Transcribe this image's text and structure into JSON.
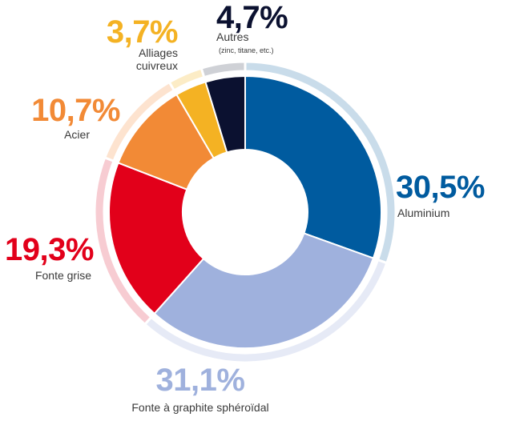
{
  "chart_data": {
    "type": "donut",
    "title": "",
    "slices": [
      {
        "key": "aluminium",
        "label": "Aluminium",
        "pct_label": "30,5%",
        "value": 30.5,
        "color": "#005b9f",
        "ring_color": "#c9dcea"
      },
      {
        "key": "fonte_sph",
        "label": "Fonte à graphite sphéroïdal",
        "pct_label": "31,1%",
        "value": 31.1,
        "color": "#9fb1dd",
        "ring_color": "#e6eaf6"
      },
      {
        "key": "fonte_grise",
        "label": "Fonte grise",
        "pct_label": "19,3%",
        "value": 19.3,
        "color": "#e2001a",
        "ring_color": "#f7ccd2"
      },
      {
        "key": "acier",
        "label": "Acier",
        "pct_label": "10,7%",
        "value": 10.7,
        "color": "#f28a36",
        "ring_color": "#fde3cf"
      },
      {
        "key": "alliages",
        "label": "Alliages\ncuivreux",
        "pct_label": "3,7%",
        "value": 3.7,
        "color": "#f4b223",
        "ring_color": "#fcecc6"
      },
      {
        "key": "autres",
        "label": "Autres",
        "sublabel": "(zinc, titane, etc.)",
        "pct_label": "4,7%",
        "value": 4.7,
        "color": "#0b1130",
        "ring_color": "#cfd1d6"
      }
    ]
  }
}
